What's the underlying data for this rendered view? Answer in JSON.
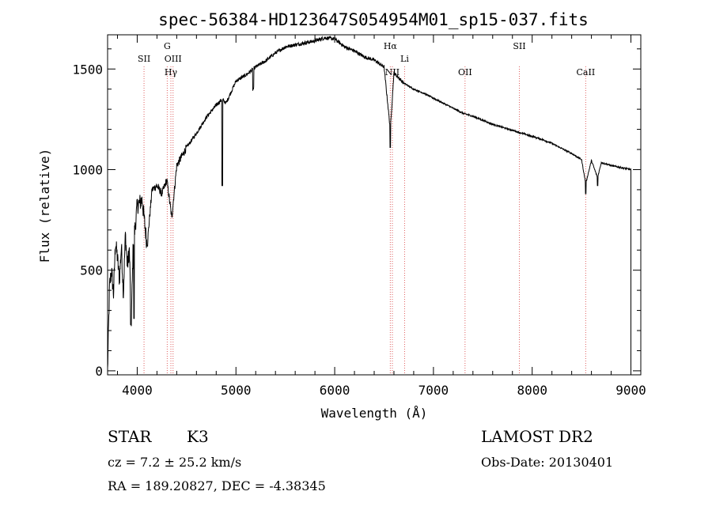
{
  "chart_data": {
    "type": "line",
    "title": "spec-56384-HD123647S054954M01_sp15-037.fits",
    "xlabel": "Wavelength (Å)",
    "ylabel": "Flux (relative)",
    "xlim": [
      3700,
      9100
    ],
    "ylim": [
      -20,
      1670
    ],
    "xticks": [
      4000,
      5000,
      6000,
      7000,
      8000,
      9000
    ],
    "yticks": [
      0,
      500,
      1000,
      1500
    ],
    "x_tick_labels": [
      "4000",
      "5000",
      "6000",
      "7000",
      "8000",
      "9000"
    ],
    "y_tick_labels": [
      "0",
      "500",
      "1000",
      "1500"
    ],
    "grid": false,
    "line_color": "#000000",
    "marker_color": "#e06060",
    "line_markers": [
      {
        "label": "SII",
        "x": 4069,
        "row": 1
      },
      {
        "label": "G",
        "x": 4304,
        "row": 0
      },
      {
        "label": "OIII",
        "x": 4363,
        "row": 1
      },
      {
        "label": "Hγ",
        "x": 4341,
        "row": 2
      },
      {
        "label": "Hα",
        "x": 6563,
        "row": 0
      },
      {
        "label": "NII",
        "x": 6584,
        "row": 2
      },
      {
        "label": "Li",
        "x": 6708,
        "row": 1
      },
      {
        "label": "OII",
        "x": 7320,
        "row": 2
      },
      {
        "label": "SII",
        "x": 7870,
        "row": 0
      },
      {
        "label": "CaII",
        "x": 8542,
        "row": 2
      }
    ],
    "series": [
      {
        "x": [
          3700,
          3720,
          3740,
          3760,
          3780,
          3800,
          3820,
          3840,
          3860,
          3880,
          3900,
          3920,
          3940,
          3960,
          3980,
          4000,
          4050,
          4100,
          4150,
          4200,
          4250,
          4300,
          4350,
          4400,
          4500,
          4600,
          4700,
          4800,
          4860,
          4900,
          5000,
          5100,
          5200,
          5300,
          5400,
          5500,
          5600,
          5700,
          5800,
          5900,
          6000,
          6100,
          6200,
          6300,
          6400,
          6500,
          6563,
          6600,
          6700,
          6800,
          6900,
          7000,
          7100,
          7200,
          7300,
          7400,
          7500,
          7600,
          7700,
          7800,
          7900,
          8000,
          8100,
          8200,
          8300,
          8400,
          8500,
          8542,
          8600,
          8662,
          8700,
          8800,
          8900,
          9000
        ],
        "y": [
          0,
          420,
          500,
          380,
          640,
          560,
          450,
          620,
          380,
          680,
          520,
          600,
          250,
          640,
          720,
          820,
          850,
          620,
          900,
          920,
          880,
          950,
          760,
          1020,
          1110,
          1180,
          1260,
          1320,
          1350,
          1330,
          1440,
          1470,
          1510,
          1540,
          1580,
          1610,
          1620,
          1630,
          1640,
          1655,
          1650,
          1610,
          1590,
          1560,
          1545,
          1510,
          1200,
          1480,
          1430,
          1400,
          1380,
          1355,
          1330,
          1305,
          1280,
          1265,
          1245,
          1225,
          1210,
          1195,
          1180,
          1165,
          1150,
          1130,
          1105,
          1080,
          1050,
          930,
          1045,
          960,
          1035,
          1020,
          1010,
          1000
        ]
      }
    ]
  },
  "info": {
    "object_type": "STAR",
    "subclass": "K3",
    "survey": "LAMOST DR2",
    "cz": "cz = 7.2 ± 25.2 km/s",
    "obs_date": "Obs-Date: 20130401",
    "coords": "RA = 189.20827, DEC =  -4.38345"
  }
}
